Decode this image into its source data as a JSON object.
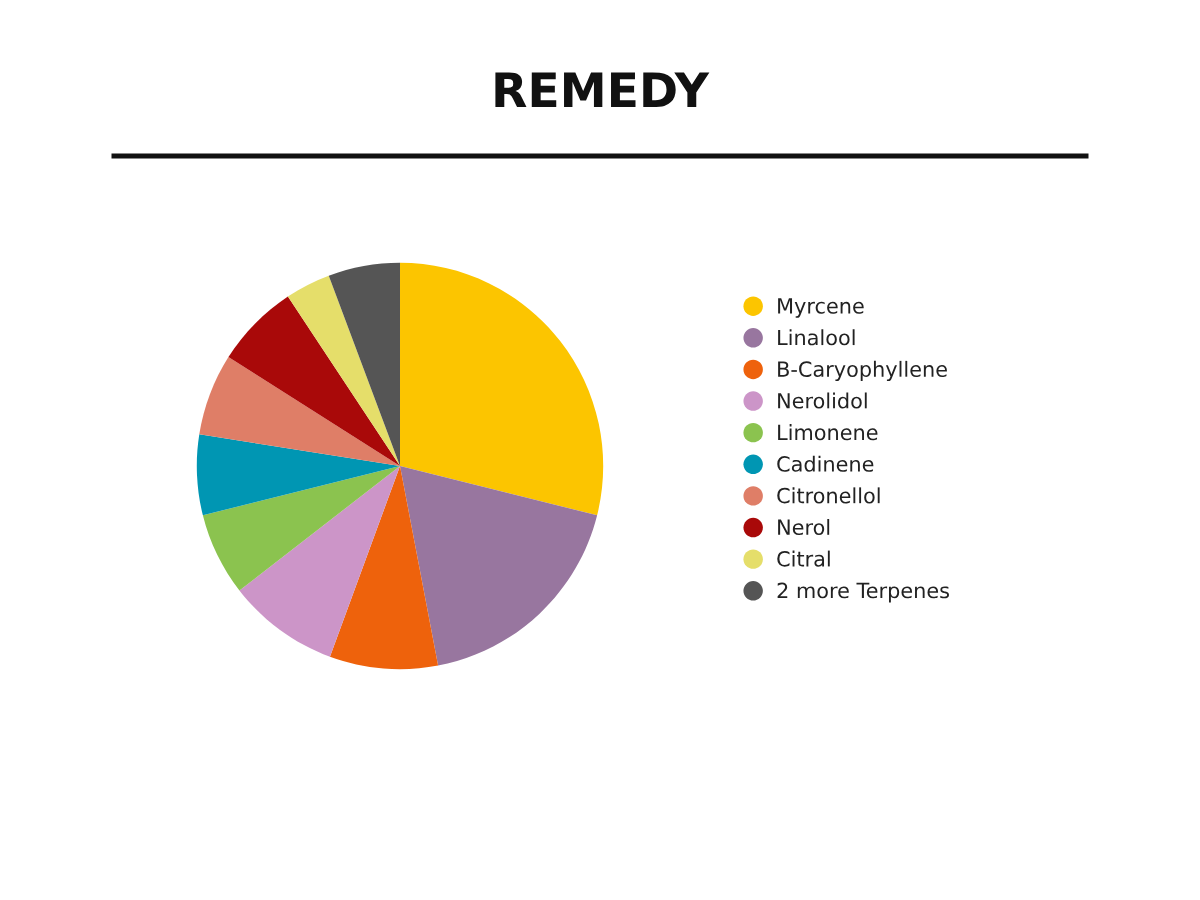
{
  "chart_data": {
    "type": "pie",
    "title": "REMEDY",
    "categories": [
      "Myrcene",
      "Linalool",
      "B-Caryophyllene",
      "Nerolidol",
      "Limonene",
      "Cadinene",
      "Citronellol",
      "Nerol",
      "Citral",
      "2 more Terpenes"
    ],
    "values": [
      28.9,
      18.1,
      8.6,
      8.9,
      6.6,
      6.4,
      6.5,
      6.7,
      3.6,
      5.7
    ],
    "colors": [
      "#fcc500",
      "#98769f",
      "#ee620c",
      "#cc95c8",
      "#8bc34f",
      "#0096b3",
      "#df7e67",
      "#a90909",
      "#e5de6a",
      "#555555"
    ],
    "legend": "right"
  }
}
